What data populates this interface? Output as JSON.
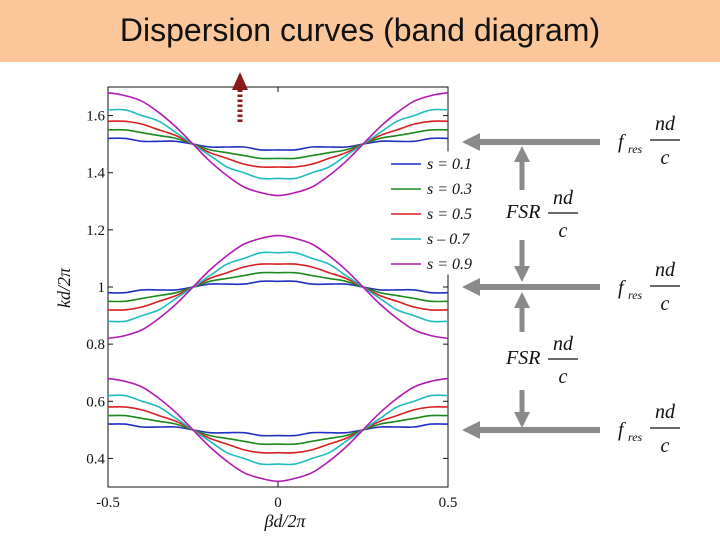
{
  "title": "Dispersion curves (band diagram)",
  "chart_data": {
    "type": "line",
    "xlabel": "βd/2π",
    "ylabel": "kd/2π",
    "xlim": [
      -0.5,
      0.5
    ],
    "ylim": [
      0.3,
      1.7
    ],
    "xticks": [
      "-0.5",
      "0",
      "0.5"
    ],
    "yticks": [
      "0.4",
      "0.6",
      "0.8",
      "1",
      "1.2",
      "1.4",
      "1.6"
    ],
    "legend_position": "right, upper-middle",
    "x": [
      -0.5,
      -0.45,
      -0.4,
      -0.35,
      -0.3,
      -0.25,
      -0.2,
      -0.15,
      -0.1,
      -0.05,
      0,
      0.05,
      0.1,
      0.15,
      0.2,
      0.25,
      0.3,
      0.35,
      0.4,
      0.45,
      0.5
    ],
    "series": [
      {
        "name": "s = 0.1",
        "color": "#1f2fbf",
        "bands": [
          [
            0.52,
            0.52,
            0.51,
            0.51,
            0.51,
            0.5,
            0.49,
            0.49,
            0.49,
            0.48,
            0.48,
            0.48,
            0.49,
            0.49,
            0.49,
            0.5,
            0.51,
            0.51,
            0.51,
            0.52,
            0.52
          ],
          [
            0.98,
            0.98,
            0.99,
            0.99,
            0.99,
            1.0,
            1.01,
            1.01,
            1.01,
            1.02,
            1.02,
            1.02,
            1.01,
            1.01,
            1.01,
            1.0,
            0.99,
            0.99,
            0.99,
            0.98,
            0.98
          ],
          [
            1.52,
            1.52,
            1.51,
            1.51,
            1.51,
            1.5,
            1.49,
            1.49,
            1.49,
            1.48,
            1.48,
            1.48,
            1.49,
            1.49,
            1.49,
            1.5,
            1.51,
            1.51,
            1.51,
            1.52,
            1.52
          ]
        ]
      },
      {
        "name": "s = 0.3",
        "color": "#1a8a1a",
        "bands": [
          [
            0.55,
            0.55,
            0.54,
            0.53,
            0.52,
            0.5,
            0.48,
            0.47,
            0.46,
            0.45,
            0.45,
            0.45,
            0.46,
            0.47,
            0.48,
            0.5,
            0.52,
            0.53,
            0.54,
            0.55,
            0.55
          ],
          [
            0.95,
            0.95,
            0.96,
            0.97,
            0.98,
            1.0,
            1.02,
            1.03,
            1.04,
            1.05,
            1.05,
            1.05,
            1.04,
            1.03,
            1.02,
            1.0,
            0.98,
            0.97,
            0.96,
            0.95,
            0.95
          ],
          [
            1.55,
            1.55,
            1.54,
            1.53,
            1.52,
            1.5,
            1.48,
            1.47,
            1.46,
            1.45,
            1.45,
            1.45,
            1.46,
            1.47,
            1.48,
            1.5,
            1.52,
            1.53,
            1.54,
            1.55,
            1.55
          ]
        ]
      },
      {
        "name": "s = 0.5",
        "color": "#d81e1e",
        "bands": [
          [
            0.58,
            0.58,
            0.57,
            0.55,
            0.53,
            0.5,
            0.47,
            0.45,
            0.43,
            0.42,
            0.42,
            0.42,
            0.43,
            0.45,
            0.47,
            0.5,
            0.53,
            0.55,
            0.57,
            0.58,
            0.58
          ],
          [
            0.92,
            0.92,
            0.93,
            0.95,
            0.97,
            1.0,
            1.03,
            1.05,
            1.07,
            1.08,
            1.08,
            1.08,
            1.07,
            1.05,
            1.03,
            1.0,
            0.97,
            0.95,
            0.93,
            0.92,
            0.92
          ],
          [
            1.58,
            1.58,
            1.57,
            1.55,
            1.53,
            1.5,
            1.47,
            1.45,
            1.43,
            1.42,
            1.42,
            1.42,
            1.43,
            1.45,
            1.47,
            1.5,
            1.53,
            1.55,
            1.57,
            1.58,
            1.58
          ]
        ]
      },
      {
        "name": "s – 0.7",
        "color": "#1fbcbc",
        "bands": [
          [
            0.62,
            0.62,
            0.6,
            0.58,
            0.54,
            0.5,
            0.46,
            0.42,
            0.4,
            0.38,
            0.38,
            0.38,
            0.4,
            0.42,
            0.46,
            0.5,
            0.54,
            0.58,
            0.6,
            0.62,
            0.62
          ],
          [
            0.88,
            0.88,
            0.9,
            0.92,
            0.96,
            1.0,
            1.04,
            1.08,
            1.1,
            1.12,
            1.12,
            1.12,
            1.1,
            1.08,
            1.04,
            1.0,
            0.96,
            0.92,
            0.9,
            0.88,
            0.88
          ],
          [
            1.62,
            1.62,
            1.6,
            1.58,
            1.54,
            1.5,
            1.46,
            1.42,
            1.4,
            1.38,
            1.38,
            1.38,
            1.4,
            1.42,
            1.46,
            1.5,
            1.54,
            1.58,
            1.6,
            1.62,
            1.62
          ]
        ]
      },
      {
        "name": "s = 0.9",
        "color": "#b21ab2",
        "bands": [
          [
            0.68,
            0.67,
            0.65,
            0.61,
            0.56,
            0.5,
            0.44,
            0.39,
            0.35,
            0.33,
            0.32,
            0.33,
            0.35,
            0.39,
            0.44,
            0.5,
            0.56,
            0.61,
            0.65,
            0.67,
            0.68
          ],
          [
            0.82,
            0.83,
            0.85,
            0.89,
            0.94,
            1.0,
            1.06,
            1.11,
            1.15,
            1.17,
            1.18,
            1.17,
            1.15,
            1.11,
            1.06,
            1.0,
            0.94,
            0.89,
            0.85,
            0.83,
            0.82
          ],
          [
            1.68,
            1.67,
            1.65,
            1.61,
            1.56,
            1.5,
            1.44,
            1.39,
            1.35,
            1.33,
            1.32,
            1.33,
            1.35,
            1.39,
            1.44,
            1.5,
            1.56,
            1.61,
            1.65,
            1.67,
            1.68
          ]
        ]
      }
    ]
  },
  "annotations": {
    "fres_label_main": "f",
    "fres_label_sub": "res",
    "nd": "nd",
    "c": "c",
    "fsr": "FSR"
  },
  "colors": {
    "arrow_gray": "#8a8a8a",
    "arrow_darkred": "#8b1a1a",
    "title_bg": "#fbc79a"
  }
}
